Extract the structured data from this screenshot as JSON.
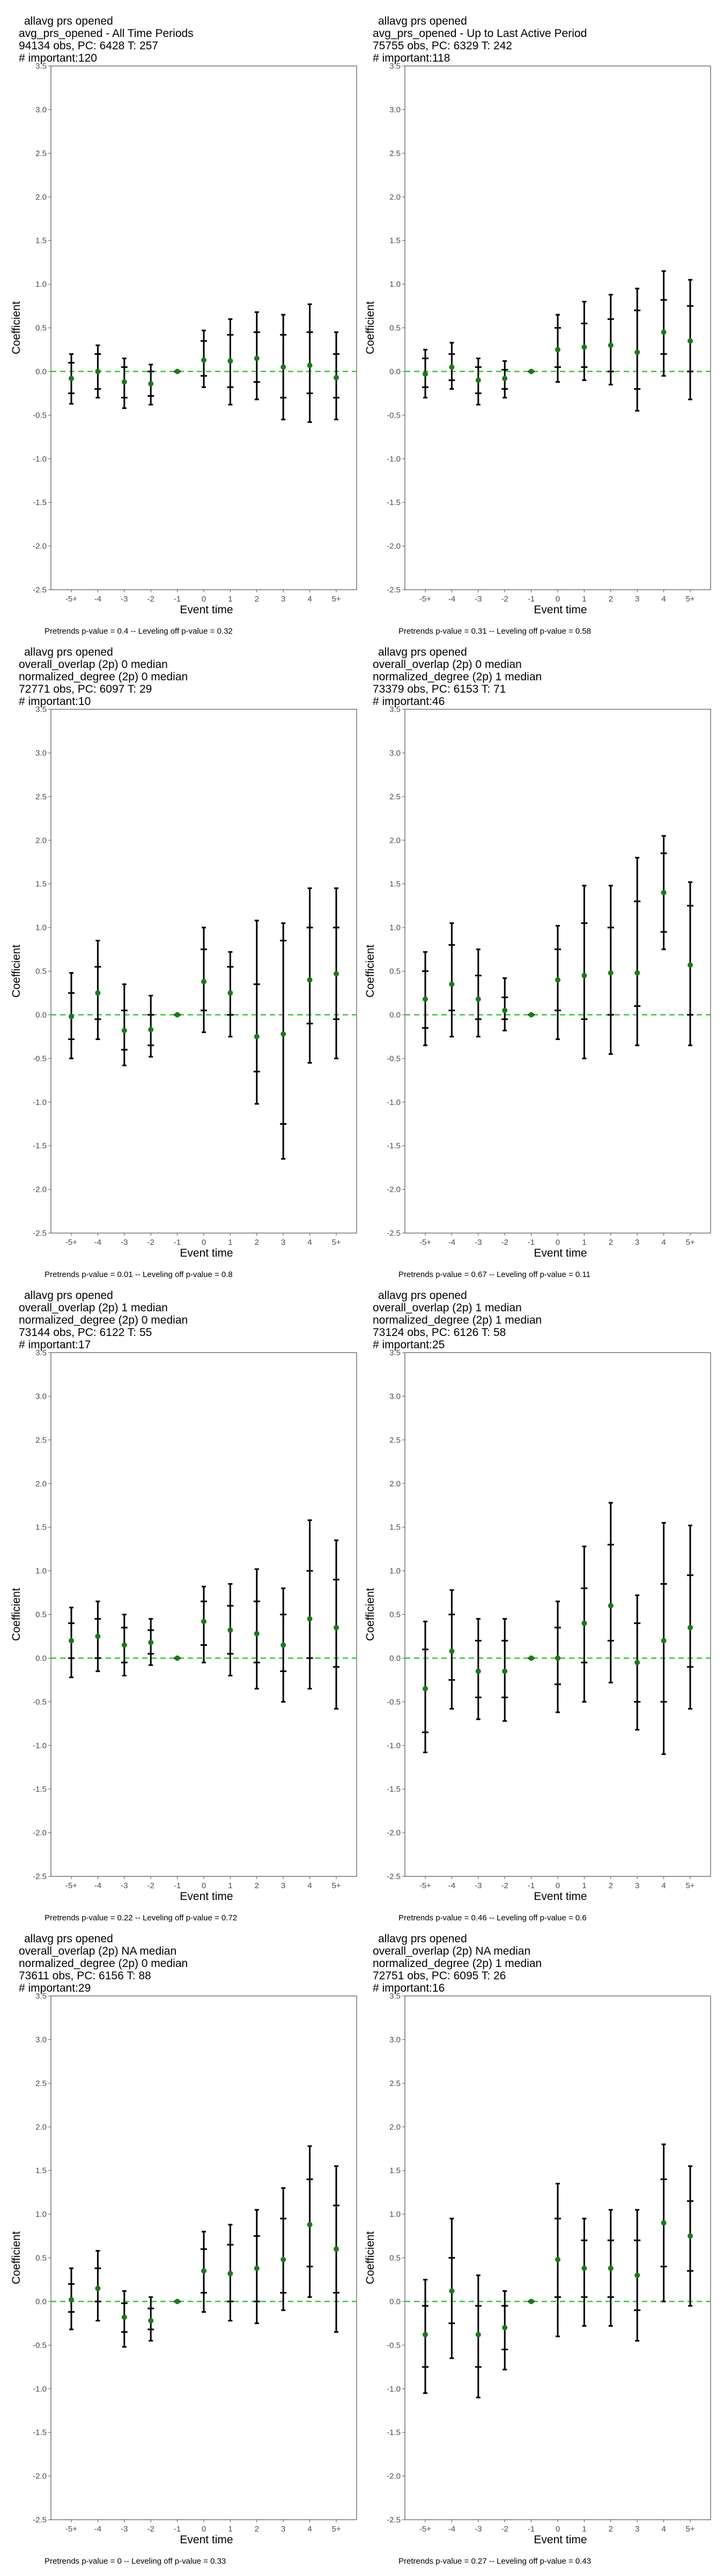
{
  "chart_data": [
    {
      "type": "errorbar",
      "title": [
        "allavg prs opened",
        "avg_prs_opened - All Time Periods",
        "94134 obs, PC: 6428 T: 257",
        "# important:120"
      ],
      "xlabel": "Event time",
      "ylabel": "Coefficient",
      "categories": [
        "-5+",
        "-4",
        "-3",
        "-2",
        "-1",
        "0",
        "1",
        "2",
        "3",
        "4",
        "5+"
      ],
      "estimates": [
        -0.08,
        0.0,
        -0.12,
        -0.14,
        0.0,
        0.13,
        0.12,
        0.15,
        0.05,
        0.07,
        -0.07
      ],
      "ci_outer": [
        [
          -0.37,
          0.2
        ],
        [
          -0.3,
          0.3
        ],
        [
          -0.42,
          0.15
        ],
        [
          -0.38,
          0.08
        ],
        [
          0.0,
          0.0
        ],
        [
          -0.18,
          0.47
        ],
        [
          -0.38,
          0.6
        ],
        [
          -0.32,
          0.68
        ],
        [
          -0.55,
          0.65
        ],
        [
          -0.58,
          0.77
        ],
        [
          -0.55,
          0.45
        ]
      ],
      "ci_inner": [
        [
          -0.25,
          0.1
        ],
        [
          -0.2,
          0.2
        ],
        [
          -0.3,
          0.05
        ],
        [
          -0.28,
          0.0
        ],
        [
          0.0,
          0.0
        ],
        [
          -0.05,
          0.35
        ],
        [
          -0.18,
          0.42
        ],
        [
          -0.12,
          0.45
        ],
        [
          -0.3,
          0.42
        ],
        [
          -0.25,
          0.45
        ],
        [
          -0.3,
          0.2
        ]
      ],
      "ylim": [
        -2.5,
        3.5
      ],
      "ytick_step": 0.5,
      "footnote": "Pretrends p-value = 0.4 -- Leveling off p-value = 0.32"
    },
    {
      "type": "errorbar",
      "title": [
        "allavg prs opened",
        "avg_prs_opened - Up to Last Active Period",
        "75755 obs, PC: 6329 T: 242",
        "# important:118"
      ],
      "xlabel": "Event time",
      "ylabel": "Coefficient",
      "categories": [
        "-5+",
        "-4",
        "-3",
        "-2",
        "-1",
        "0",
        "1",
        "2",
        "3",
        "4",
        "5+"
      ],
      "estimates": [
        -0.03,
        0.05,
        -0.1,
        -0.08,
        0.0,
        0.25,
        0.28,
        0.3,
        0.22,
        0.45,
        0.35
      ],
      "ci_outer": [
        [
          -0.3,
          0.25
        ],
        [
          -0.2,
          0.33
        ],
        [
          -0.38,
          0.15
        ],
        [
          -0.3,
          0.12
        ],
        [
          0.0,
          0.0
        ],
        [
          -0.12,
          0.65
        ],
        [
          -0.1,
          0.8
        ],
        [
          -0.15,
          0.88
        ],
        [
          -0.45,
          0.95
        ],
        [
          -0.05,
          1.15
        ],
        [
          -0.32,
          1.05
        ]
      ],
      "ci_inner": [
        [
          -0.18,
          0.15
        ],
        [
          -0.1,
          0.2
        ],
        [
          -0.25,
          0.05
        ],
        [
          -0.2,
          0.02
        ],
        [
          0.0,
          0.0
        ],
        [
          0.05,
          0.5
        ],
        [
          0.05,
          0.55
        ],
        [
          0.0,
          0.6
        ],
        [
          -0.2,
          0.7
        ],
        [
          0.2,
          0.82
        ],
        [
          0.0,
          0.75
        ]
      ],
      "ylim": [
        -2.5,
        3.5
      ],
      "ytick_step": 0.5,
      "footnote": "Pretrends p-value = 0.31 -- Leveling off p-value = 0.58"
    },
    {
      "type": "errorbar",
      "title": [
        "allavg prs opened",
        "overall_overlap (2p) 0 median",
        "normalized_degree (2p) 0 median",
        "72771 obs, PC: 6097 T: 29",
        "# important:10"
      ],
      "xlabel": "Event time",
      "ylabel": "Coefficient",
      "categories": [
        "-5+",
        "-4",
        "-3",
        "-2",
        "-1",
        "0",
        "1",
        "2",
        "3",
        "4",
        "5+"
      ],
      "estimates": [
        -0.02,
        0.25,
        -0.18,
        -0.17,
        0.0,
        0.38,
        0.25,
        -0.25,
        -0.22,
        0.4,
        0.47
      ],
      "ci_outer": [
        [
          -0.5,
          0.48
        ],
        [
          -0.28,
          0.85
        ],
        [
          -0.58,
          0.35
        ],
        [
          -0.48,
          0.22
        ],
        [
          0.0,
          0.0
        ],
        [
          -0.2,
          1.0
        ],
        [
          -0.25,
          0.72
        ],
        [
          -1.02,
          1.08
        ],
        [
          -1.65,
          1.05
        ],
        [
          -0.55,
          1.45
        ],
        [
          -0.5,
          1.45
        ]
      ],
      "ci_inner": [
        [
          -0.28,
          0.25
        ],
        [
          -0.05,
          0.55
        ],
        [
          -0.4,
          0.05
        ],
        [
          -0.35,
          0.0
        ],
        [
          0.0,
          0.0
        ],
        [
          0.05,
          0.75
        ],
        [
          0.0,
          0.55
        ],
        [
          -0.65,
          0.35
        ],
        [
          -1.25,
          0.85
        ],
        [
          -0.1,
          1.0
        ],
        [
          -0.05,
          1.0
        ]
      ],
      "ylim": [
        -2.5,
        3.5
      ],
      "ytick_step": 0.5,
      "footnote": "Pretrends p-value = 0.01 -- Leveling off p-value = 0.8"
    },
    {
      "type": "errorbar",
      "title": [
        "allavg prs opened",
        "overall_overlap (2p) 0 median",
        "normalized_degree (2p) 1 median",
        "73379 obs, PC: 6153 T: 71",
        "# important:46"
      ],
      "xlabel": "Event time",
      "ylabel": "Coefficient",
      "categories": [
        "-5+",
        "-4",
        "-3",
        "-2",
        "-1",
        "0",
        "1",
        "2",
        "3",
        "4",
        "5+"
      ],
      "estimates": [
        0.18,
        0.35,
        0.18,
        0.05,
        0.0,
        0.4,
        0.45,
        0.48,
        0.48,
        1.4,
        0.57
      ],
      "ci_outer": [
        [
          -0.35,
          0.72
        ],
        [
          -0.25,
          1.05
        ],
        [
          -0.25,
          0.75
        ],
        [
          -0.18,
          0.42
        ],
        [
          0.0,
          0.0
        ],
        [
          -0.28,
          1.02
        ],
        [
          -0.5,
          1.48
        ],
        [
          -0.45,
          1.48
        ],
        [
          -0.35,
          1.8
        ],
        [
          0.75,
          2.05
        ],
        [
          -0.35,
          1.52
        ]
      ],
      "ci_inner": [
        [
          -0.15,
          0.5
        ],
        [
          0.05,
          0.8
        ],
        [
          -0.05,
          0.45
        ],
        [
          -0.05,
          0.2
        ],
        [
          0.0,
          0.0
        ],
        [
          0.05,
          0.75
        ],
        [
          -0.05,
          1.05
        ],
        [
          0.0,
          1.0
        ],
        [
          0.1,
          1.3
        ],
        [
          0.95,
          1.85
        ],
        [
          0.0,
          1.25
        ]
      ],
      "ylim": [
        -2.5,
        3.5
      ],
      "ytick_step": 0.5,
      "footnote": "Pretrends p-value = 0.67 -- Leveling off p-value = 0.11"
    },
    {
      "type": "errorbar",
      "title": [
        "allavg prs opened",
        "overall_overlap (2p) 1 median",
        "normalized_degree (2p) 0 median",
        "73144 obs, PC: 6122 T: 55",
        "# important:17"
      ],
      "xlabel": "Event time",
      "ylabel": "Coefficient",
      "categories": [
        "-5+",
        "-4",
        "-3",
        "-2",
        "-1",
        "0",
        "1",
        "2",
        "3",
        "4",
        "5+"
      ],
      "estimates": [
        0.2,
        0.25,
        0.15,
        0.18,
        0.0,
        0.42,
        0.32,
        0.28,
        0.15,
        0.45,
        0.35
      ],
      "ci_outer": [
        [
          -0.22,
          0.58
        ],
        [
          -0.15,
          0.65
        ],
        [
          -0.2,
          0.5
        ],
        [
          -0.08,
          0.45
        ],
        [
          0.0,
          0.0
        ],
        [
          -0.05,
          0.82
        ],
        [
          -0.2,
          0.85
        ],
        [
          -0.35,
          1.02
        ],
        [
          -0.5,
          0.8
        ],
        [
          -0.35,
          1.58
        ],
        [
          -0.58,
          1.35
        ]
      ],
      "ci_inner": [
        [
          0.0,
          0.4
        ],
        [
          0.0,
          0.45
        ],
        [
          -0.05,
          0.35
        ],
        [
          0.05,
          0.32
        ],
        [
          0.0,
          0.0
        ],
        [
          0.15,
          0.65
        ],
        [
          0.05,
          0.6
        ],
        [
          -0.05,
          0.65
        ],
        [
          -0.15,
          0.5
        ],
        [
          0.0,
          1.0
        ],
        [
          -0.1,
          0.9
        ]
      ],
      "ylim": [
        -2.5,
        3.5
      ],
      "ytick_step": 0.5,
      "footnote": "Pretrends p-value = 0.22 -- Leveling off p-value = 0.72"
    },
    {
      "type": "errorbar",
      "title": [
        "allavg prs opened",
        "overall_overlap (2p) 1 median",
        "normalized_degree (2p) 1 median",
        "73124 obs, PC: 6126 T: 58",
        "# important:25"
      ],
      "xlabel": "Event time",
      "ylabel": "Coefficient",
      "categories": [
        "-5+",
        "-4",
        "-3",
        "-2",
        "-1",
        "0",
        "1",
        "2",
        "3",
        "4",
        "5+"
      ],
      "estimates": [
        -0.35,
        0.08,
        -0.15,
        -0.15,
        0.0,
        0.0,
        0.4,
        0.6,
        -0.05,
        0.2,
        0.35
      ],
      "ci_outer": [
        [
          -1.08,
          0.42
        ],
        [
          -0.58,
          0.78
        ],
        [
          -0.7,
          0.45
        ],
        [
          -0.72,
          0.45
        ],
        [
          0.0,
          0.0
        ],
        [
          -0.62,
          0.65
        ],
        [
          -0.5,
          1.28
        ],
        [
          -0.28,
          1.78
        ],
        [
          -0.82,
          0.72
        ],
        [
          -1.1,
          1.55
        ],
        [
          -0.58,
          1.52
        ]
      ],
      "ci_inner": [
        [
          -0.85,
          0.1
        ],
        [
          -0.25,
          0.5
        ],
        [
          -0.45,
          0.2
        ],
        [
          -0.45,
          0.2
        ],
        [
          0.0,
          0.0
        ],
        [
          -0.3,
          0.35
        ],
        [
          -0.05,
          0.8
        ],
        [
          0.2,
          1.3
        ],
        [
          -0.5,
          0.4
        ],
        [
          -0.5,
          0.85
        ],
        [
          -0.1,
          0.95
        ]
      ],
      "ylim": [
        -2.5,
        3.5
      ],
      "ytick_step": 0.5,
      "footnote": "Pretrends p-value = 0.46 -- Leveling off p-value = 0.6"
    },
    {
      "type": "errorbar",
      "title": [
        "allavg prs opened",
        "overall_overlap (2p) NA median",
        "normalized_degree (2p) 0 median",
        "73611 obs, PC: 6156 T: 88",
        "# important:29"
      ],
      "xlabel": "Event time",
      "ylabel": "Coefficient",
      "categories": [
        "-5+",
        "-4",
        "-3",
        "-2",
        "-1",
        "0",
        "1",
        "2",
        "3",
        "4",
        "5+"
      ],
      "estimates": [
        0.02,
        0.15,
        -0.18,
        -0.22,
        0.0,
        0.35,
        0.32,
        0.38,
        0.48,
        0.88,
        0.6
      ],
      "ci_outer": [
        [
          -0.32,
          0.38
        ],
        [
          -0.22,
          0.58
        ],
        [
          -0.52,
          0.12
        ],
        [
          -0.45,
          0.05
        ],
        [
          0.0,
          0.0
        ],
        [
          -0.12,
          0.8
        ],
        [
          -0.22,
          0.88
        ],
        [
          -0.25,
          1.05
        ],
        [
          -0.1,
          1.3
        ],
        [
          0.05,
          1.78
        ],
        [
          -0.35,
          1.55
        ]
      ],
      "ci_inner": [
        [
          -0.12,
          0.2
        ],
        [
          0.0,
          0.38
        ],
        [
          -0.35,
          -0.02
        ],
        [
          -0.32,
          -0.08
        ],
        [
          0.0,
          0.0
        ],
        [
          0.1,
          0.6
        ],
        [
          0.0,
          0.65
        ],
        [
          0.0,
          0.75
        ],
        [
          0.1,
          0.95
        ],
        [
          0.4,
          1.4
        ],
        [
          0.1,
          1.1
        ]
      ],
      "ylim": [
        -2.5,
        3.5
      ],
      "ytick_step": 0.5,
      "footnote": "Pretrends p-value = 0 -- Leveling off p-value = 0.33"
    },
    {
      "type": "errorbar",
      "title": [
        "allavg prs opened",
        "overall_overlap (2p) NA median",
        "normalized_degree (2p) 1 median",
        "72751 obs, PC: 6095 T: 26",
        "# important:16"
      ],
      "xlabel": "Event time",
      "ylabel": "Coefficient",
      "categories": [
        "-5+",
        "-4",
        "-3",
        "-2",
        "-1",
        "0",
        "1",
        "2",
        "3",
        "4",
        "5+"
      ],
      "estimates": [
        -0.38,
        0.12,
        -0.38,
        -0.3,
        0.0,
        0.48,
        0.38,
        0.38,
        0.3,
        0.9,
        0.75
      ],
      "ci_outer": [
        [
          -1.05,
          0.25
        ],
        [
          -0.65,
          0.95
        ],
        [
          -1.1,
          0.3
        ],
        [
          -0.78,
          0.12
        ],
        [
          0.0,
          0.0
        ],
        [
          -0.4,
          1.35
        ],
        [
          -0.28,
          0.95
        ],
        [
          -0.28,
          1.05
        ],
        [
          -0.45,
          1.05
        ],
        [
          0.0,
          1.8
        ],
        [
          -0.05,
          1.55
        ]
      ],
      "ci_inner": [
        [
          -0.75,
          -0.05
        ],
        [
          -0.25,
          0.5
        ],
        [
          -0.75,
          -0.05
        ],
        [
          -0.55,
          -0.05
        ],
        [
          0.0,
          0.0
        ],
        [
          0.05,
          0.95
        ],
        [
          0.05,
          0.7
        ],
        [
          0.05,
          0.7
        ],
        [
          -0.1,
          0.7
        ],
        [
          0.4,
          1.4
        ],
        [
          0.35,
          1.15
        ]
      ],
      "ylim": [
        -2.5,
        3.5
      ],
      "ytick_step": 0.5,
      "footnote": "Pretrends p-value = 0.27 -- Leveling off p-value = 0.43"
    }
  ],
  "colors": {
    "point": "#1a7a1a",
    "zero_line": "#33cc33",
    "bars": "#000000",
    "frame": "#555555",
    "text": "#000000",
    "tick_text": "#4d4d4d"
  }
}
